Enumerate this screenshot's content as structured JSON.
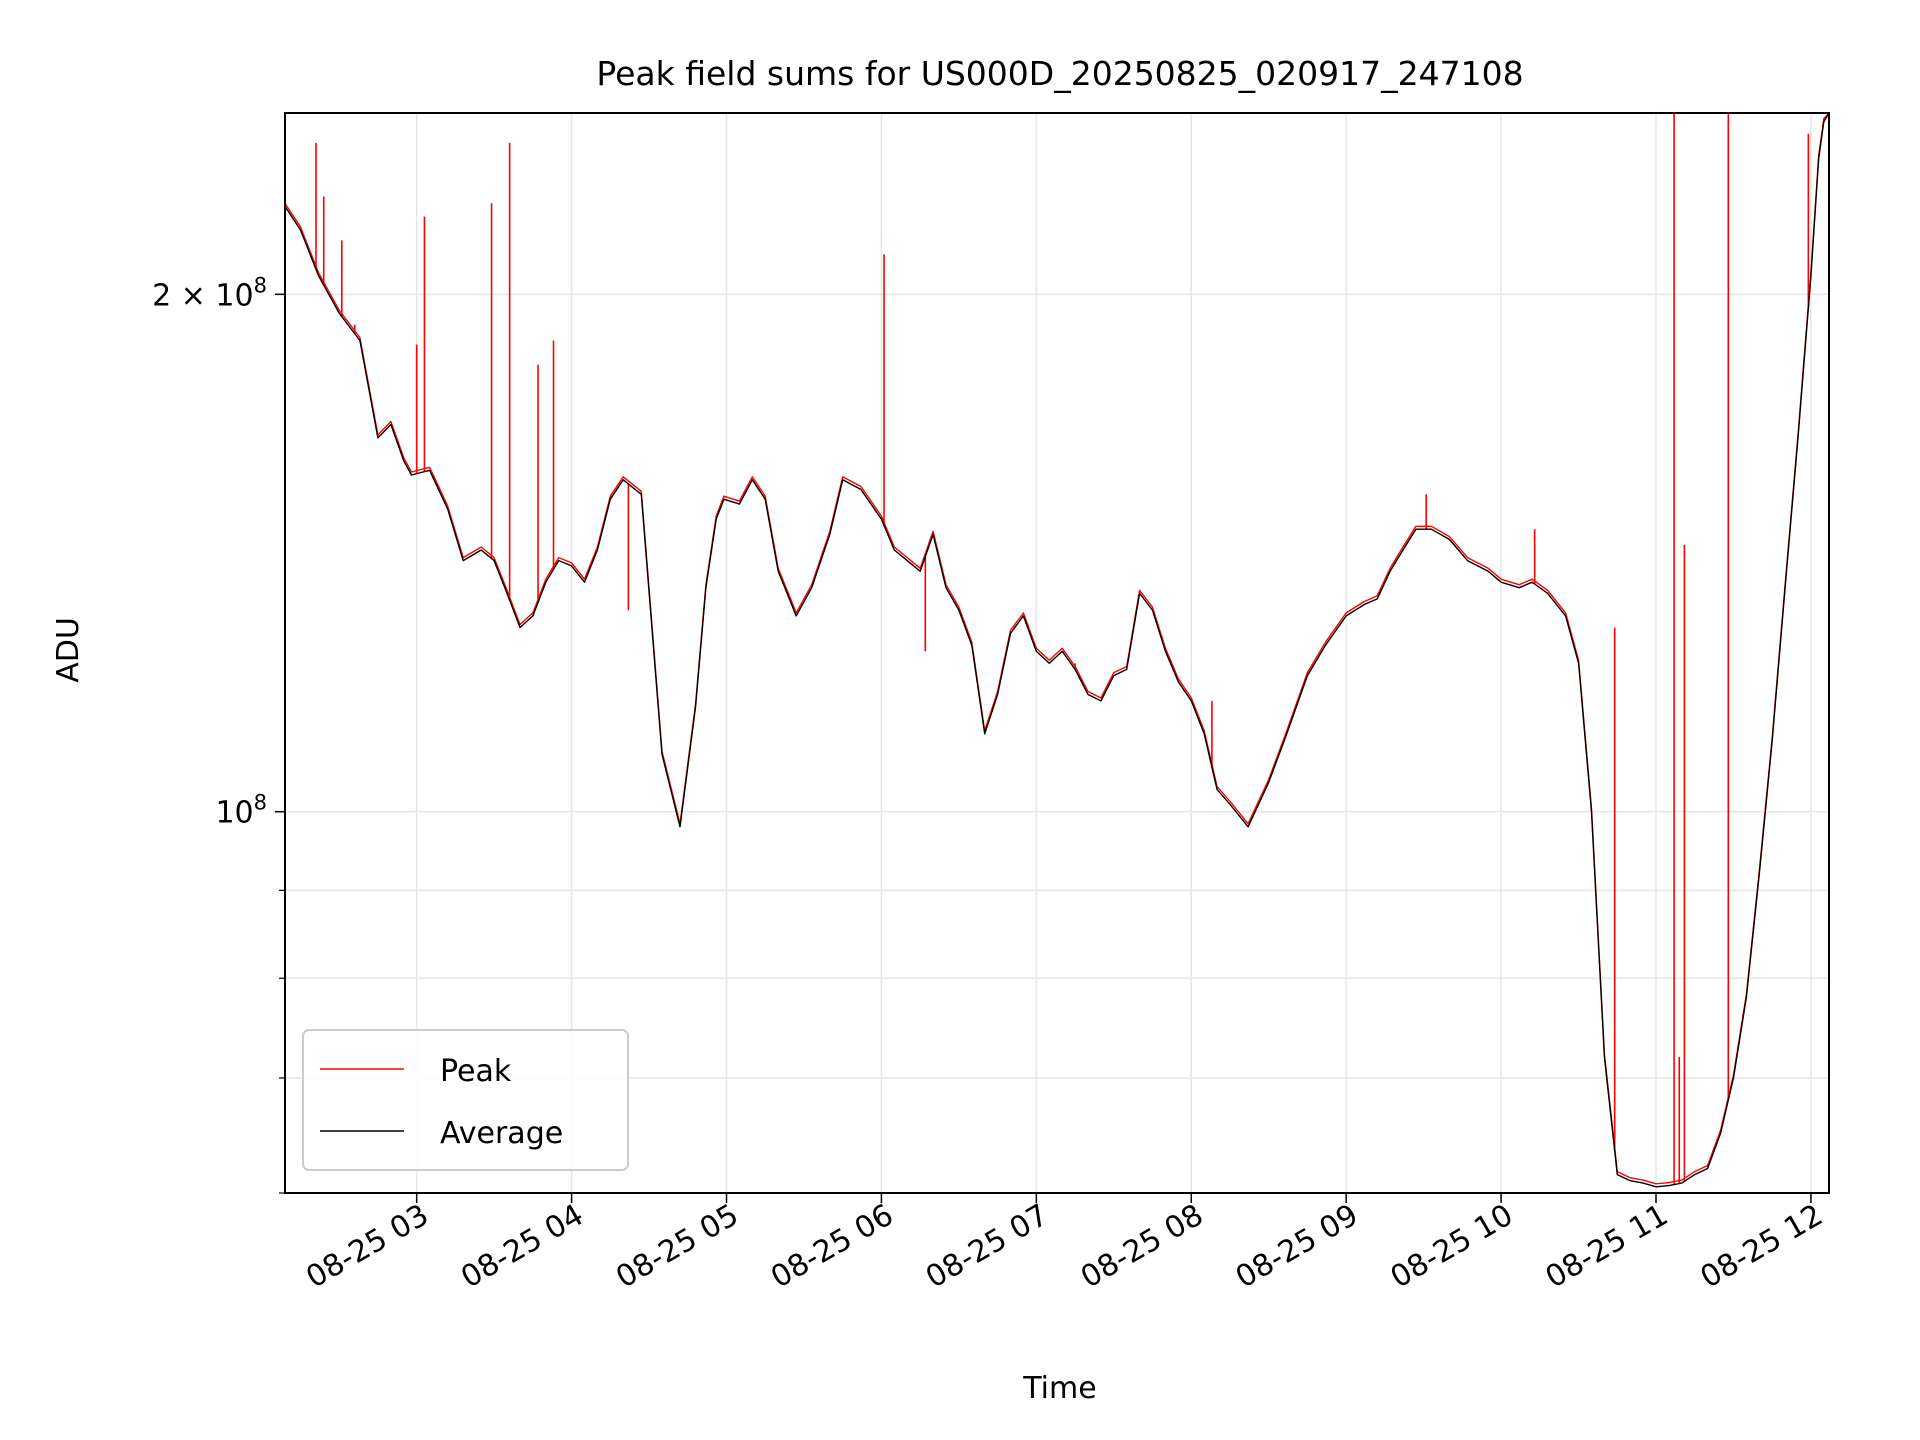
{
  "chart_data": {
    "type": "line",
    "title": "Peak field sums for US000D_20250825_020917_247108",
    "xlabel": "Time",
    "ylabel": "ADU",
    "y_scale": "log",
    "ylim": [
      60000000,
      255000000
    ],
    "x_time_range": [
      "2025-08-25 02:09",
      "2025-08-25 12:07"
    ],
    "x_ticks": [
      "08-25 03",
      "08-25 04",
      "08-25 05",
      "08-25 06",
      "08-25 07",
      "08-25 08",
      "08-25 09",
      "08-25 10",
      "08-25 11",
      "08-25 12"
    ],
    "y_major_ticks": [
      {
        "value": 100000000,
        "base": "10",
        "exp": "8"
      },
      {
        "value": 200000000,
        "base": "2 × 10",
        "exp": "8"
      }
    ],
    "y_minor_ticks": [
      60000000,
      70000000,
      80000000,
      90000000,
      300000000
    ],
    "grid": true,
    "legend_position": "lower-left",
    "colors": {
      "peak": "#ff0000",
      "average": "#000000",
      "grid": "#e6e6e6"
    },
    "series": [
      {
        "name": "Average",
        "x": [
          "2025-08-25 02:09",
          "2025-08-25 02:15",
          "2025-08-25 02:22",
          "2025-08-25 02:30",
          "2025-08-25 02:38",
          "2025-08-25 02:45",
          "2025-08-25 02:50",
          "2025-08-25 02:55",
          "2025-08-25 02:58",
          "2025-08-25 03:05",
          "2025-08-25 03:12",
          "2025-08-25 03:18",
          "2025-08-25 03:25",
          "2025-08-25 03:30",
          "2025-08-25 03:35",
          "2025-08-25 03:40",
          "2025-08-25 03:45",
          "2025-08-25 03:50",
          "2025-08-25 03:55",
          "2025-08-25 04:00",
          "2025-08-25 04:05",
          "2025-08-25 04:10",
          "2025-08-25 04:15",
          "2025-08-25 04:20",
          "2025-08-25 04:27",
          "2025-08-25 04:35",
          "2025-08-25 04:42",
          "2025-08-25 04:48",
          "2025-08-25 04:52",
          "2025-08-25 04:56",
          "2025-08-25 04:59",
          "2025-08-25 05:05",
          "2025-08-25 05:10",
          "2025-08-25 05:15",
          "2025-08-25 05:20",
          "2025-08-25 05:27",
          "2025-08-25 05:33",
          "2025-08-25 05:40",
          "2025-08-25 05:45",
          "2025-08-25 05:52",
          "2025-08-25 06:00",
          "2025-08-25 06:05",
          "2025-08-25 06:10",
          "2025-08-25 06:15",
          "2025-08-25 06:20",
          "2025-08-25 06:25",
          "2025-08-25 06:30",
          "2025-08-25 06:35",
          "2025-08-25 06:40",
          "2025-08-25 06:45",
          "2025-08-25 06:50",
          "2025-08-25 06:55",
          "2025-08-25 07:00",
          "2025-08-25 07:05",
          "2025-08-25 07:10",
          "2025-08-25 07:15",
          "2025-08-25 07:20",
          "2025-08-25 07:25",
          "2025-08-25 07:30",
          "2025-08-25 07:35",
          "2025-08-25 07:40",
          "2025-08-25 07:45",
          "2025-08-25 07:50",
          "2025-08-25 07:55",
          "2025-08-25 08:00",
          "2025-08-25 08:05",
          "2025-08-25 08:10",
          "2025-08-25 08:15",
          "2025-08-25 08:22",
          "2025-08-25 08:30",
          "2025-08-25 08:37",
          "2025-08-25 08:45",
          "2025-08-25 08:52",
          "2025-08-25 09:00",
          "2025-08-25 09:07",
          "2025-08-25 09:12",
          "2025-08-25 09:17",
          "2025-08-25 09:22",
          "2025-08-25 09:27",
          "2025-08-25 09:33",
          "2025-08-25 09:40",
          "2025-08-25 09:47",
          "2025-08-25 09:55",
          "2025-08-25 10:00",
          "2025-08-25 10:07",
          "2025-08-25 10:12",
          "2025-08-25 10:18",
          "2025-08-25 10:25",
          "2025-08-25 10:30",
          "2025-08-25 10:35",
          "2025-08-25 10:40",
          "2025-08-25 10:45",
          "2025-08-25 10:50",
          "2025-08-25 10:55",
          "2025-08-25 11:00",
          "2025-08-25 11:05",
          "2025-08-25 11:10",
          "2025-08-25 11:15",
          "2025-08-25 11:20",
          "2025-08-25 11:25",
          "2025-08-25 11:30",
          "2025-08-25 11:35",
          "2025-08-25 11:40",
          "2025-08-25 11:45",
          "2025-08-25 11:50",
          "2025-08-25 11:55",
          "2025-08-25 12:00",
          "2025-08-25 12:03",
          "2025-08-25 12:05",
          "2025-08-25 12:07"
        ],
        "y": [
          225000000,
          218000000,
          205000000,
          195000000,
          188000000,
          165000000,
          168000000,
          160000000,
          157000000,
          158000000,
          150000000,
          140000000,
          142000000,
          140000000,
          134000000,
          128000000,
          130000000,
          136000000,
          140000000,
          139000000,
          136000000,
          142000000,
          152000000,
          156000000,
          153000000,
          108000000,
          98000000,
          115000000,
          135000000,
          148000000,
          152000000,
          151000000,
          156000000,
          152000000,
          138000000,
          130000000,
          135000000,
          145000000,
          156000000,
          154000000,
          148000000,
          142000000,
          140000000,
          138000000,
          145000000,
          135000000,
          131000000,
          125000000,
          111000000,
          117000000,
          127000000,
          130000000,
          124000000,
          122000000,
          124000000,
          121000000,
          117000000,
          116000000,
          120000000,
          121000000,
          134000000,
          131000000,
          124000000,
          119000000,
          116000000,
          111000000,
          103000000,
          101000000,
          98000000,
          104000000,
          111000000,
          120000000,
          125000000,
          130000000,
          132000000,
          133000000,
          138000000,
          142000000,
          146000000,
          146000000,
          144000000,
          140000000,
          138000000,
          136000000,
          135000000,
          136000000,
          134000000,
          130000000,
          122000000,
          100000000,
          72000000,
          61500000,
          61000000,
          60800000,
          60500000,
          60600000,
          60800000,
          61500000,
          62000000,
          65000000,
          70000000,
          78000000,
          92000000,
          110000000,
          135000000,
          165000000,
          205000000,
          240000000,
          252000000,
          255000000
        ]
      },
      {
        "name": "Peak",
        "spikes": [
          {
            "x": "2025-08-25 02:21",
            "y": 245000000
          },
          {
            "x": "2025-08-25 02:24",
            "y": 228000000
          },
          {
            "x": "2025-08-25 02:31",
            "y": 215000000
          },
          {
            "x": "2025-08-25 02:36",
            "y": 192000000
          },
          {
            "x": "2025-08-25 03:00",
            "y": 187000000
          },
          {
            "x": "2025-08-25 03:03",
            "y": 222000000
          },
          {
            "x": "2025-08-25 03:29",
            "y": 226000000
          },
          {
            "x": "2025-08-25 03:36",
            "y": 245000000
          },
          {
            "x": "2025-08-25 03:47",
            "y": 182000000
          },
          {
            "x": "2025-08-25 03:53",
            "y": 188000000
          },
          {
            "x": "2025-08-25 04:22",
            "y": 131000000
          },
          {
            "x": "2025-08-25 06:01",
            "y": 211000000
          },
          {
            "x": "2025-08-25 06:17",
            "y": 124000000
          },
          {
            "x": "2025-08-25 07:15",
            "y": 122000000
          },
          {
            "x": "2025-08-25 08:08",
            "y": 116000000
          },
          {
            "x": "2025-08-25 09:31",
            "y": 153000000
          },
          {
            "x": "2025-08-25 10:13",
            "y": 146000000
          },
          {
            "x": "2025-08-25 10:44",
            "y": 128000000
          },
          {
            "x": "2025-08-25 11:07",
            "y": 255000000
          },
          {
            "x": "2025-08-25 11:09",
            "y": 72000000
          },
          {
            "x": "2025-08-25 11:11",
            "y": 143000000
          },
          {
            "x": "2025-08-25 11:28",
            "y": 255000000
          },
          {
            "x": "2025-08-25 11:59",
            "y": 248000000
          }
        ]
      }
    ]
  }
}
